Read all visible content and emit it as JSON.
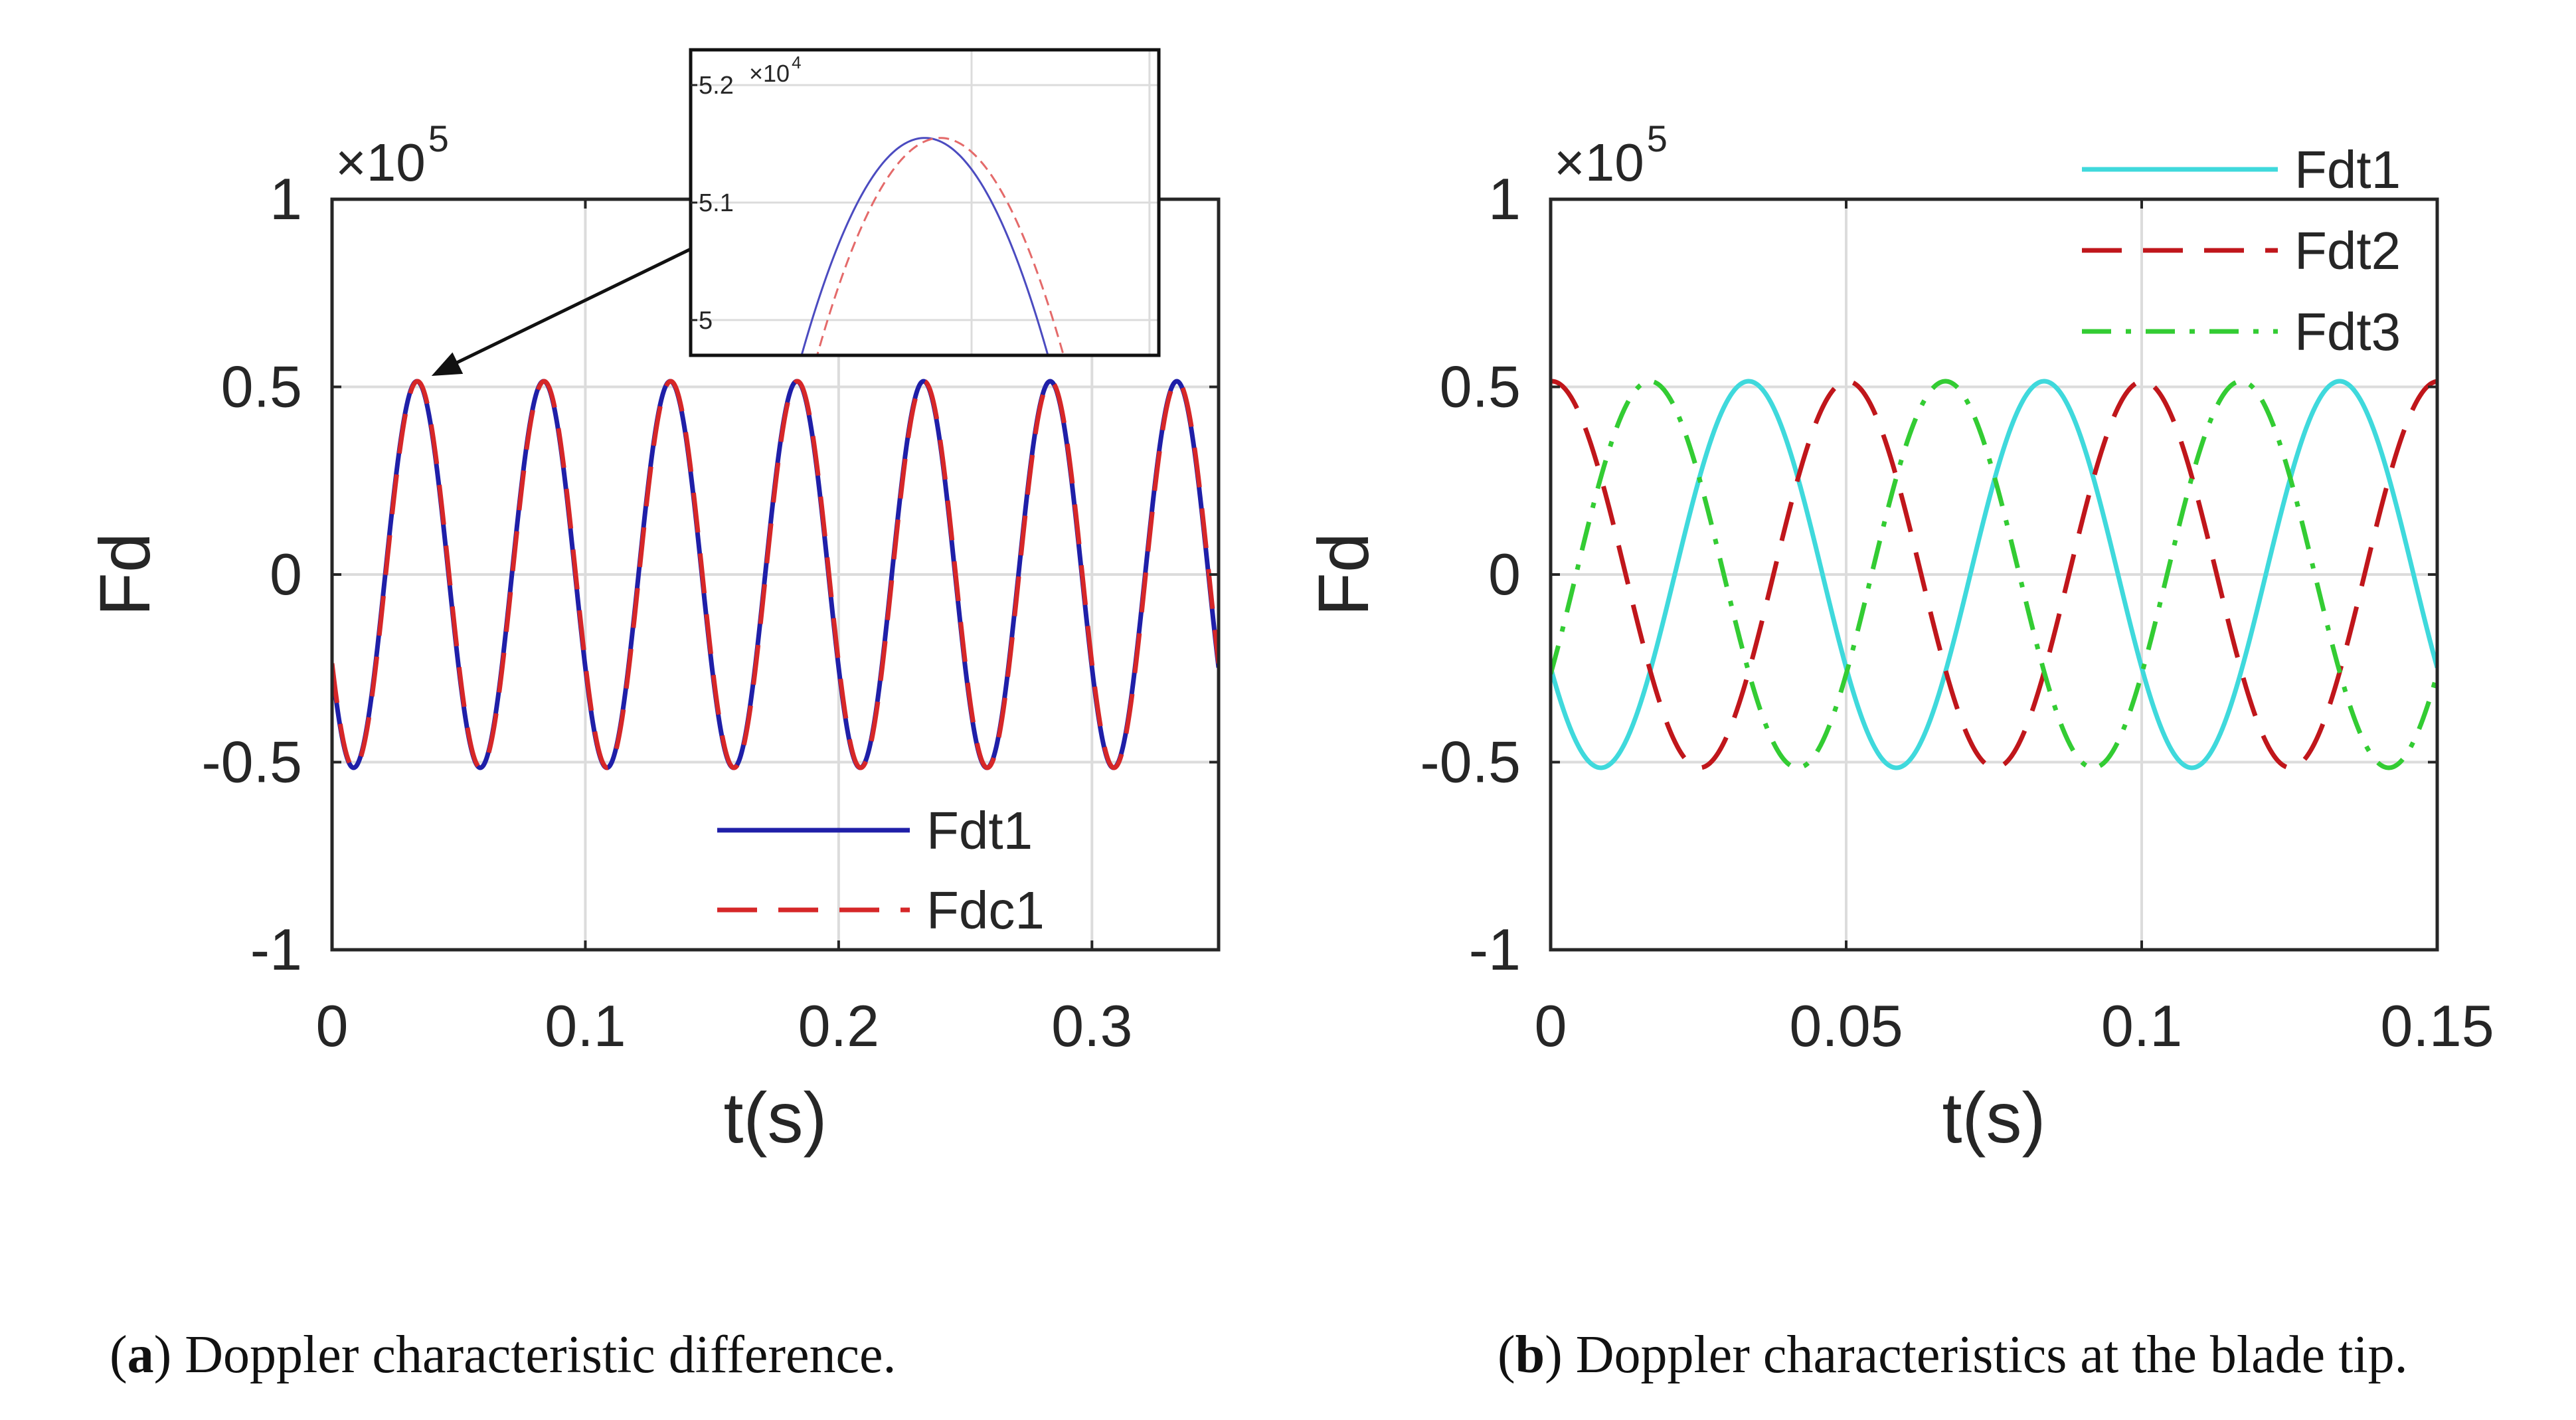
{
  "chart_data": [
    {
      "type": "line",
      "panel": "a",
      "caption_letter": "a",
      "caption_text": "Doppler characteristic difference.",
      "xlabel": "t(s)",
      "ylabel": "Fd",
      "xlim": [
        0,
        0.35
      ],
      "ylim": [
        -1,
        1
      ],
      "y_multiplier": "×10",
      "y_multiplier_exp": "5",
      "xticks": [
        0,
        0.1,
        0.2,
        0.3
      ],
      "xtick_labels": [
        "0",
        "0.1",
        "0.2",
        "0.3"
      ],
      "yticks": [
        1,
        0.5,
        0,
        -0.5,
        -1
      ],
      "ytick_labels": [
        "1",
        "0.5",
        "0",
        "-0.5",
        "-1"
      ],
      "grid": true,
      "legend_position": "bottom-right",
      "series": [
        {
          "name": "Fdt1",
          "color": "#1f1fa8",
          "style": "solid",
          "amplitude": 0.515,
          "period": 0.05,
          "peak_t": 0.0335
        },
        {
          "name": "Fdc1",
          "color": "#d62728",
          "style": "dashed",
          "amplitude": 0.515,
          "period": 0.05,
          "peak_t": 0.0337
        }
      ],
      "inset": {
        "y_multiplier": "×10",
        "y_multiplier_exp": "4",
        "ylim": [
          4.97,
          5.23
        ],
        "yticks": [
          5.2,
          5.1,
          5
        ],
        "ytick_labels": [
          "5.2",
          "5.1",
          "5"
        ],
        "window": [
          0.0305,
          0.0365
        ],
        "peak_value": 5.155,
        "half_width": 0.0016
      }
    },
    {
      "type": "line",
      "panel": "b",
      "caption_letter": "b",
      "caption_text": "Doppler characteristics at the blade tip.",
      "xlabel": "t(s)",
      "ylabel": "Fd",
      "xlim": [
        0,
        0.15
      ],
      "ylim": [
        -1,
        1
      ],
      "y_multiplier": "×10",
      "y_multiplier_exp": "5",
      "xticks": [
        0,
        0.05,
        0.1,
        0.15
      ],
      "xtick_labels": [
        "0",
        "0.05",
        "0.1",
        "0.15"
      ],
      "yticks": [
        1,
        0.5,
        0,
        -0.5,
        -1
      ],
      "ytick_labels": [
        "1",
        "0.5",
        "0",
        "-0.5",
        "-1"
      ],
      "grid": true,
      "legend_position": "top-right",
      "series": [
        {
          "name": "Fdt1",
          "color": "#3fd9dc",
          "style": "solid",
          "amplitude": 0.515,
          "period": 0.05,
          "peak_t": 0.0335
        },
        {
          "name": "Fdt2",
          "color": "#c0161b",
          "style": "dashed",
          "amplitude": 0.515,
          "period": 0.05,
          "peak_t": 0.0002
        },
        {
          "name": "Fdt3",
          "color": "#33cc33",
          "style": "dashdot",
          "amplitude": 0.515,
          "period": 0.05,
          "peak_t": 0.0168
        }
      ]
    }
  ]
}
